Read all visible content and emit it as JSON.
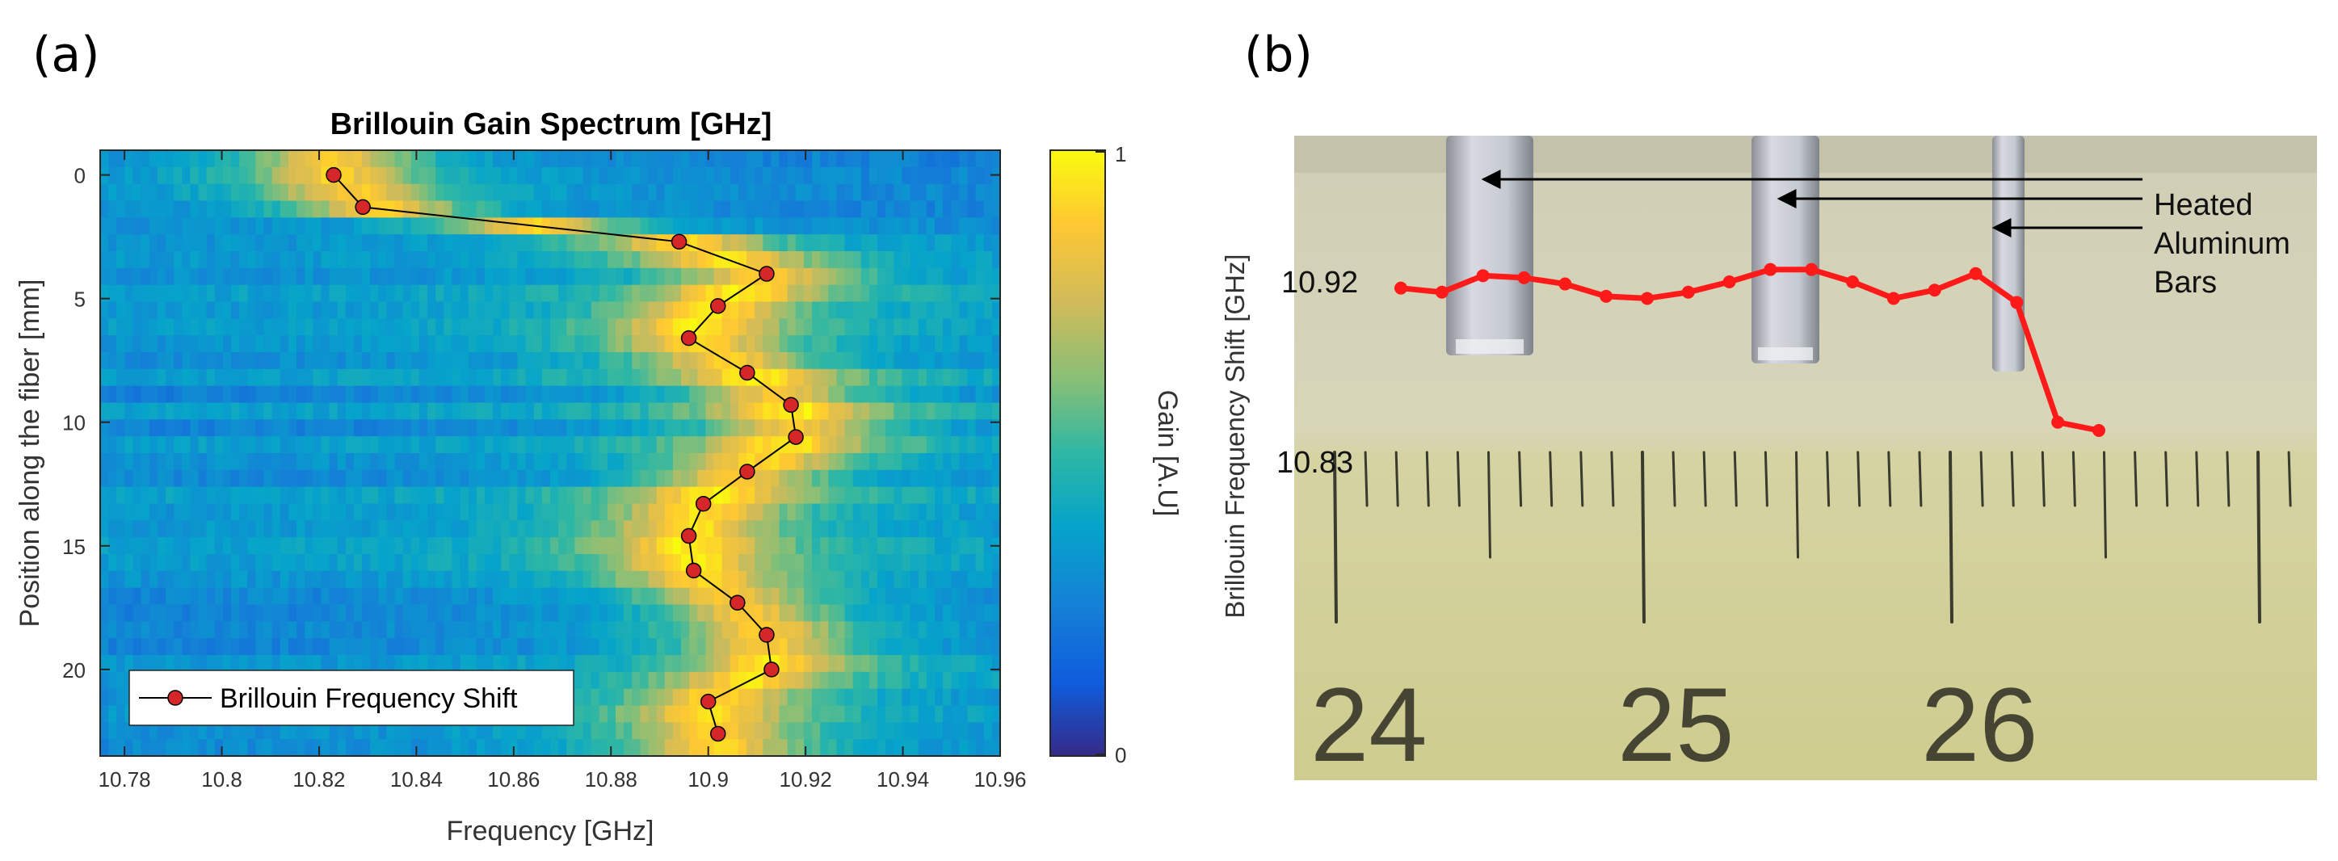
{
  "panel_a": {
    "label": "(a)"
  },
  "panel_b": {
    "label": "(b)"
  },
  "chart_data": [
    {
      "type": "heatmap",
      "title": "Brillouin Gain Spectrum [GHz]",
      "xlabel": "Frequency [GHz]",
      "ylabel": "Position along the fiber [mm]",
      "xlim": [
        10.775,
        10.96
      ],
      "ylim": [
        23.5,
        -1
      ],
      "x_ticks": [
        "10.78",
        "10.8",
        "10.82",
        "10.84",
        "10.86",
        "10.88",
        "10.9",
        "10.92",
        "10.94",
        "10.96"
      ],
      "y_ticks": [
        "0",
        "5",
        "10",
        "15",
        "20"
      ],
      "colorbar": {
        "label": "Gain [A.U]",
        "ticks": [
          "0",
          "1"
        ],
        "range": [
          0,
          1
        ]
      },
      "legend": {
        "location": "bottom-left",
        "entries": [
          "Brillouin Frequency Shift"
        ]
      },
      "series": [
        {
          "name": "Brillouin Frequency Shift",
          "color": "#d62728",
          "points": [
            {
              "x": 10.823,
              "y": 0
            },
            {
              "x": 10.829,
              "y": 1.3
            },
            {
              "x": 10.894,
              "y": 2.7
            },
            {
              "x": 10.912,
              "y": 4.0
            },
            {
              "x": 10.902,
              "y": 5.3
            },
            {
              "x": 10.896,
              "y": 6.6
            },
            {
              "x": 10.908,
              "y": 8.0
            },
            {
              "x": 10.917,
              "y": 9.3
            },
            {
              "x": 10.918,
              "y": 10.6
            },
            {
              "x": 10.908,
              "y": 12.0
            },
            {
              "x": 10.899,
              "y": 13.3
            },
            {
              "x": 10.896,
              "y": 14.6
            },
            {
              "x": 10.897,
              "y": 16.0
            },
            {
              "x": 10.906,
              "y": 17.3
            },
            {
              "x": 10.912,
              "y": 18.6
            },
            {
              "x": 10.913,
              "y": 20.0
            },
            {
              "x": 10.9,
              "y": 21.3
            },
            {
              "x": 10.902,
              "y": 22.6
            }
          ]
        }
      ]
    },
    {
      "type": "line",
      "ylabel": "Brillouin Frequency Shift [GHz]",
      "y_labels": [
        "10.92",
        "10.83"
      ],
      "ylim": [
        10.83,
        10.92
      ],
      "annotations": [
        "Heated",
        "Aluminum",
        "Bars"
      ],
      "ruler_numbers": [
        "24",
        "25",
        "26"
      ],
      "series": [
        {
          "name": "Brillouin Frequency Shift",
          "color": "#ff1a1a",
          "values": [
            10.908,
            10.906,
            10.914,
            10.913,
            10.91,
            10.904,
            10.903,
            10.906,
            10.911,
            10.917,
            10.917,
            10.911,
            10.903,
            10.907,
            10.915,
            10.901,
            10.843,
            10.839
          ]
        }
      ]
    }
  ]
}
